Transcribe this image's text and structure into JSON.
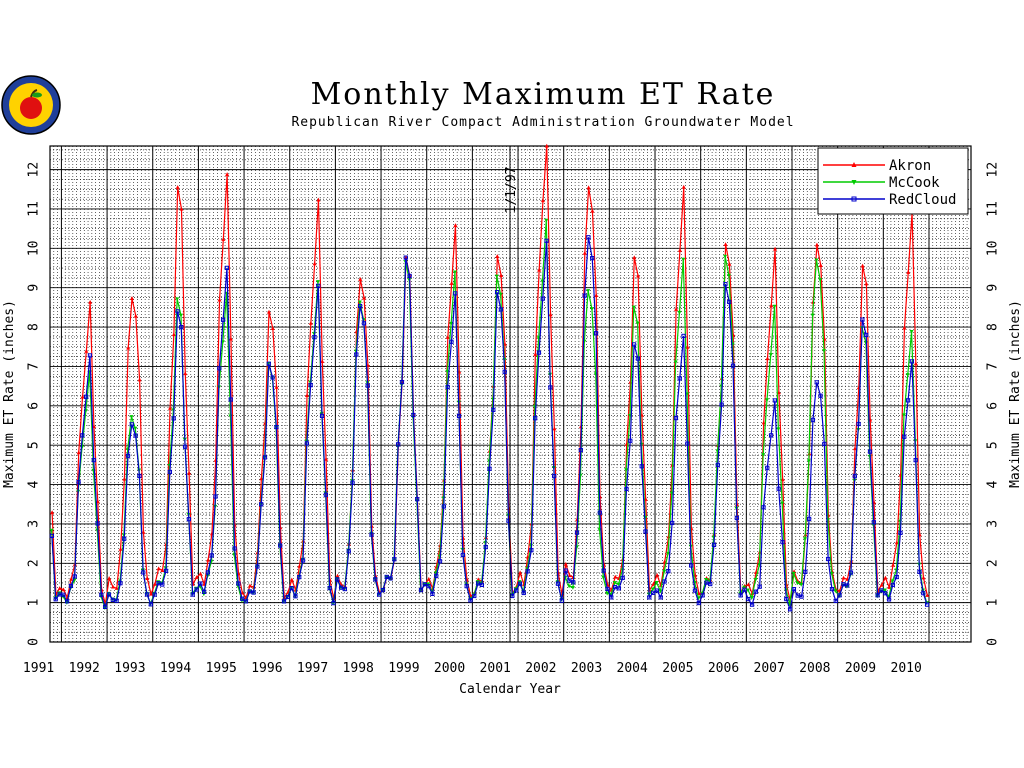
{
  "logo": {
    "icon": "apple-seal-logo"
  },
  "chart_data": {
    "type": "line",
    "title": "Monthly Maximum ET Rate",
    "subtitle": "Republican River Compact Administration Groundwater Model",
    "xlabel": "Calendar Year",
    "ylabel": "Maximum ET Rate (inches)",
    "ylabel_right": "Maximum ET Rate (inches)",
    "ylim": [
      0,
      12.6
    ],
    "yticks": [
      "0",
      "1",
      "2",
      "3",
      "4",
      "5",
      "6",
      "7",
      "8",
      "9",
      "10",
      "11",
      "12"
    ],
    "years": [
      "1991",
      "1992",
      "1993",
      "1994",
      "1995",
      "1996",
      "1997",
      "1998",
      "1999",
      "2000",
      "2001",
      "2002",
      "2003",
      "2004",
      "2005",
      "2006",
      "2007",
      "2008",
      "2009",
      "2010"
    ],
    "grid": true,
    "legend_position": "top-right",
    "annotation": {
      "text": "1/1/97",
      "year": 2001
    },
    "series": [
      {
        "name": "Akron",
        "color": "#ff0000",
        "marker": "triangle-up",
        "peaks": [
          9.4,
          8.3,
          9.0,
          11.0,
          11.0,
          8.3,
          10.8,
          9.5,
          9.3,
          9.8,
          9.7,
          12.6,
          11.9,
          9.3,
          10.7,
          10.0,
          9.6,
          10.4,
          9.1,
          10.1
        ]
      },
      {
        "name": "McCook",
        "color": "#00cc00",
        "marker": "triangle-down",
        "peaks": [
          8.1,
          6.6,
          5.9,
          8.3,
          8.2,
          7.0,
          8.8,
          8.9,
          9.2,
          8.7,
          9.2,
          10.3,
          9.2,
          8.1,
          9.0,
          9.7,
          8.2,
          10.0,
          7.6,
          7.3
        ]
      },
      {
        "name": "RedCloud",
        "color": "#0000cc",
        "marker": "square",
        "peaks": [
          7.7,
          7.0,
          5.7,
          8.0,
          8.8,
          7.0,
          8.7,
          8.8,
          9.3,
          8.2,
          8.8,
          9.8,
          10.6,
          7.2,
          7.2,
          9.0,
          5.9,
          6.8,
          7.8,
          6.6
        ]
      }
    ]
  }
}
